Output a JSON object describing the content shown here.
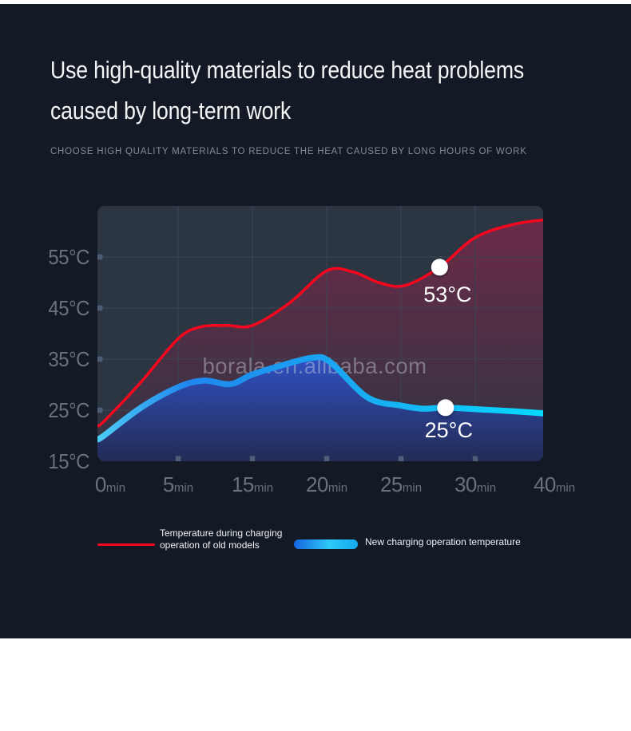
{
  "page": {
    "top_strip_color": "#ffffff",
    "dark_bg": "#141a25",
    "bottom_bg": "#ffffff"
  },
  "header": {
    "title_line1": "Use high-quality materials to reduce heat problems",
    "title_line2": "caused by long-term work",
    "subtitle": "CHOOSE HIGH QUALITY MATERIALS TO REDUCE THE HEAT CAUSED BY LONG HOURS OF WORK"
  },
  "chart_data": {
    "type": "area",
    "categories": [
      "0min",
      "5min",
      "15min",
      "20min",
      "25min",
      "30min",
      "40min"
    ],
    "y_tick_labels": [
      "55°C",
      "45°C",
      "35°C",
      "25°C",
      "15°C"
    ],
    "y_tick_values": [
      55,
      45,
      35,
      25,
      15
    ],
    "ylim": [
      15,
      65
    ],
    "grid": true,
    "legend_position": "bottom",
    "watermark": "borala.en.alibaba.com",
    "panel_bg": "#2c3542",
    "grid_color": "#3a4555",
    "tick_color": "#4e5d78",
    "axis_label_color": "#68727f",
    "watermark_color": "rgba(205,214,224,0.42)",
    "marker_label_color": "#ffffff",
    "series": [
      {
        "name": "Temperature during charging operation of old models",
        "color": "#f6071e",
        "line_width": 3.5,
        "fill_top": "rgba(210,25,80,0.38)",
        "fill_bottom": "rgba(210,25,80,0.02)",
        "values": [
          22.8,
          39,
          41.6,
          52.3,
          49.5,
          58.8,
          62.5
        ],
        "curve": [
          [
            -0.09,
            22.0
          ],
          [
            0,
            22.8
          ],
          [
            0.5,
            30.5
          ],
          [
            1,
            39.0
          ],
          [
            1.3,
            41.3
          ],
          [
            1.65,
            41.6
          ],
          [
            2,
            41.6
          ],
          [
            2.5,
            46.0
          ],
          [
            3,
            52.3
          ],
          [
            3.35,
            52.1
          ],
          [
            3.7,
            50.0
          ],
          [
            4.05,
            49.4
          ],
          [
            4.52,
            53.0
          ],
          [
            5,
            58.8
          ],
          [
            5.55,
            61.5
          ],
          [
            6.09,
            62.5
          ]
        ],
        "marker": {
          "x": 4.52,
          "value": 53,
          "label": "53°C",
          "label_dx": 10,
          "label_dy": 43
        }
      },
      {
        "name": "New charging operation temperature",
        "line_gradient": [
          [
            0,
            "#4ecdf6"
          ],
          [
            0.2,
            "#1f86ee"
          ],
          [
            0.55,
            "#19a9f1"
          ],
          [
            1,
            "#06dcff"
          ]
        ],
        "line_width": 7.5,
        "fill_top": "rgba(46,82,200,0.97)",
        "fill_bottom": "rgba(34,43,88,0.90)",
        "values": [
          20,
          29.5,
          32,
          34.5,
          25.9,
          25.2,
          24.2
        ],
        "curve": [
          [
            -0.09,
            19.3
          ],
          [
            0,
            20.0
          ],
          [
            0.5,
            25.5
          ],
          [
            1,
            29.5
          ],
          [
            1.35,
            30.8
          ],
          [
            1.7,
            30.1
          ],
          [
            2,
            32.0
          ],
          [
            2.4,
            33.8
          ],
          [
            2.82,
            35.3
          ],
          [
            3.05,
            34.4
          ],
          [
            3.55,
            27.5
          ],
          [
            4,
            25.9
          ],
          [
            4.3,
            25.3
          ],
          [
            4.6,
            25.5
          ],
          [
            5,
            25.2
          ],
          [
            5.5,
            24.8
          ],
          [
            6.09,
            24.2
          ]
        ],
        "marker": {
          "x": 4.6,
          "value": 25.5,
          "label": "25°C",
          "label_dx": 4,
          "label_dy": 37
        }
      }
    ]
  },
  "legend": {
    "items": [
      {
        "label_line1": "Temperature during charging",
        "label_line2": "operation of old models",
        "swatch": "line",
        "color": "#f6071e"
      },
      {
        "label_line1": "New charging operation temperature",
        "label_line2": "",
        "swatch": "pill",
        "color_start": "#1565e0",
        "color_mid": "#2fc9f8",
        "color_end": "#14a9f0"
      }
    ]
  }
}
